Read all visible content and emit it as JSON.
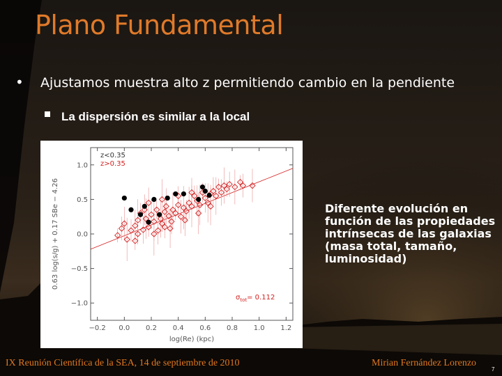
{
  "slide": {
    "title": "Plano Fundamental",
    "bullet": "Ajustamos muestra alto z permitiendo cambio en la pendiente",
    "sub_bullet": "La dispersión es similar a la local",
    "side_text": "Diferente evolución en función de las propiedades intrínsecas de las galaxias (masa total, tamaño, luminosidad)",
    "footer_left": "IX Reunión Científica de la SEA, 14 de septiembre de 2010",
    "footer_right": "Mirian Fernández Lorenzo",
    "page_number": "7",
    "colors": {
      "title": "#e07a2a",
      "footer": "#e0771f",
      "text": "#ffffff"
    }
  },
  "chart_data": {
    "type": "scatter",
    "xlabel": "log(Re)  (kpc)",
    "ylabel": "0.63 log(s/g) + 0.17 SBe − 4.26",
    "xlim": [
      -0.25,
      1.25
    ],
    "ylim": [
      -1.25,
      1.25
    ],
    "x_ticks": [
      "−0.2",
      "0.0",
      "0.2",
      "0.4",
      "0.6",
      "0.8",
      "1.0",
      "1.2"
    ],
    "y_ticks": [
      "−1.0",
      "−0.5",
      "0.0",
      "0.5",
      "1.0"
    ],
    "legend": {
      "position": "top-left",
      "entries": [
        "z<0.35",
        "z>0.35"
      ]
    },
    "annotation": {
      "text": "σ",
      "subscript": "tot",
      "suffix": "= 0.112"
    },
    "fit_line": {
      "x": [
        -0.25,
        1.25
      ],
      "y": [
        -0.22,
        0.95
      ]
    },
    "series": [
      {
        "name": "z<0.35",
        "color": "#000000",
        "marker": "filled-circle",
        "points": [
          [
            0.0,
            0.52
          ],
          [
            0.05,
            0.35
          ],
          [
            0.12,
            0.28
          ],
          [
            0.15,
            0.4
          ],
          [
            0.18,
            0.17
          ],
          [
            0.22,
            0.5
          ],
          [
            0.26,
            0.28
          ],
          [
            0.32,
            0.52
          ],
          [
            0.38,
            0.58
          ],
          [
            0.44,
            0.58
          ],
          [
            0.55,
            0.5
          ],
          [
            0.6,
            0.62
          ],
          [
            0.58,
            0.68
          ],
          [
            0.63,
            0.56
          ]
        ]
      },
      {
        "name": "z>0.35",
        "color": "#d42020",
        "marker": "open-diamond",
        "points": [
          [
            -0.05,
            -0.02
          ],
          [
            -0.02,
            0.08
          ],
          [
            0.0,
            0.15
          ],
          [
            0.02,
            -0.08
          ],
          [
            0.05,
            0.05
          ],
          [
            0.08,
            0.12
          ],
          [
            0.1,
            0.2
          ],
          [
            0.12,
            0.3
          ],
          [
            0.15,
            0.35
          ],
          [
            0.16,
            0.22
          ],
          [
            0.18,
            0.1
          ],
          [
            0.2,
            0.28
          ],
          [
            0.22,
            0.18
          ],
          [
            0.24,
            0.35
          ],
          [
            0.25,
            0.05
          ],
          [
            0.27,
            0.22
          ],
          [
            0.28,
            0.15
          ],
          [
            0.3,
            0.32
          ],
          [
            0.31,
            0.4
          ],
          [
            0.33,
            0.26
          ],
          [
            0.35,
            0.18
          ],
          [
            0.36,
            0.35
          ],
          [
            0.38,
            0.3
          ],
          [
            0.4,
            0.42
          ],
          [
            0.42,
            0.25
          ],
          [
            0.44,
            0.38
          ],
          [
            0.46,
            0.33
          ],
          [
            0.48,
            0.45
          ],
          [
            0.5,
            0.4
          ],
          [
            0.52,
            0.55
          ],
          [
            0.54,
            0.48
          ],
          [
            0.56,
            0.42
          ],
          [
            0.58,
            0.6
          ],
          [
            0.6,
            0.52
          ],
          [
            0.62,
            0.45
          ],
          [
            0.64,
            0.58
          ],
          [
            0.66,
            0.62
          ],
          [
            0.68,
            0.55
          ],
          [
            0.7,
            0.68
          ],
          [
            0.72,
            0.6
          ],
          [
            0.74,
            0.7
          ],
          [
            0.76,
            0.65
          ],
          [
            0.78,
            0.72
          ],
          [
            0.82,
            0.68
          ],
          [
            0.86,
            0.75
          ],
          [
            0.88,
            0.7
          ],
          [
            0.95,
            0.7
          ],
          [
            0.22,
            0.0
          ],
          [
            0.3,
            0.1
          ],
          [
            0.45,
            0.2
          ],
          [
            0.55,
            0.3
          ],
          [
            0.1,
            0.0
          ],
          [
            0.18,
            0.45
          ],
          [
            0.28,
            0.5
          ],
          [
            0.4,
            0.55
          ],
          [
            0.5,
            0.6
          ],
          [
            0.34,
            0.08
          ],
          [
            0.08,
            -0.1
          ],
          [
            0.14,
            0.06
          ],
          [
            0.64,
            0.4
          ]
        ]
      }
    ]
  }
}
